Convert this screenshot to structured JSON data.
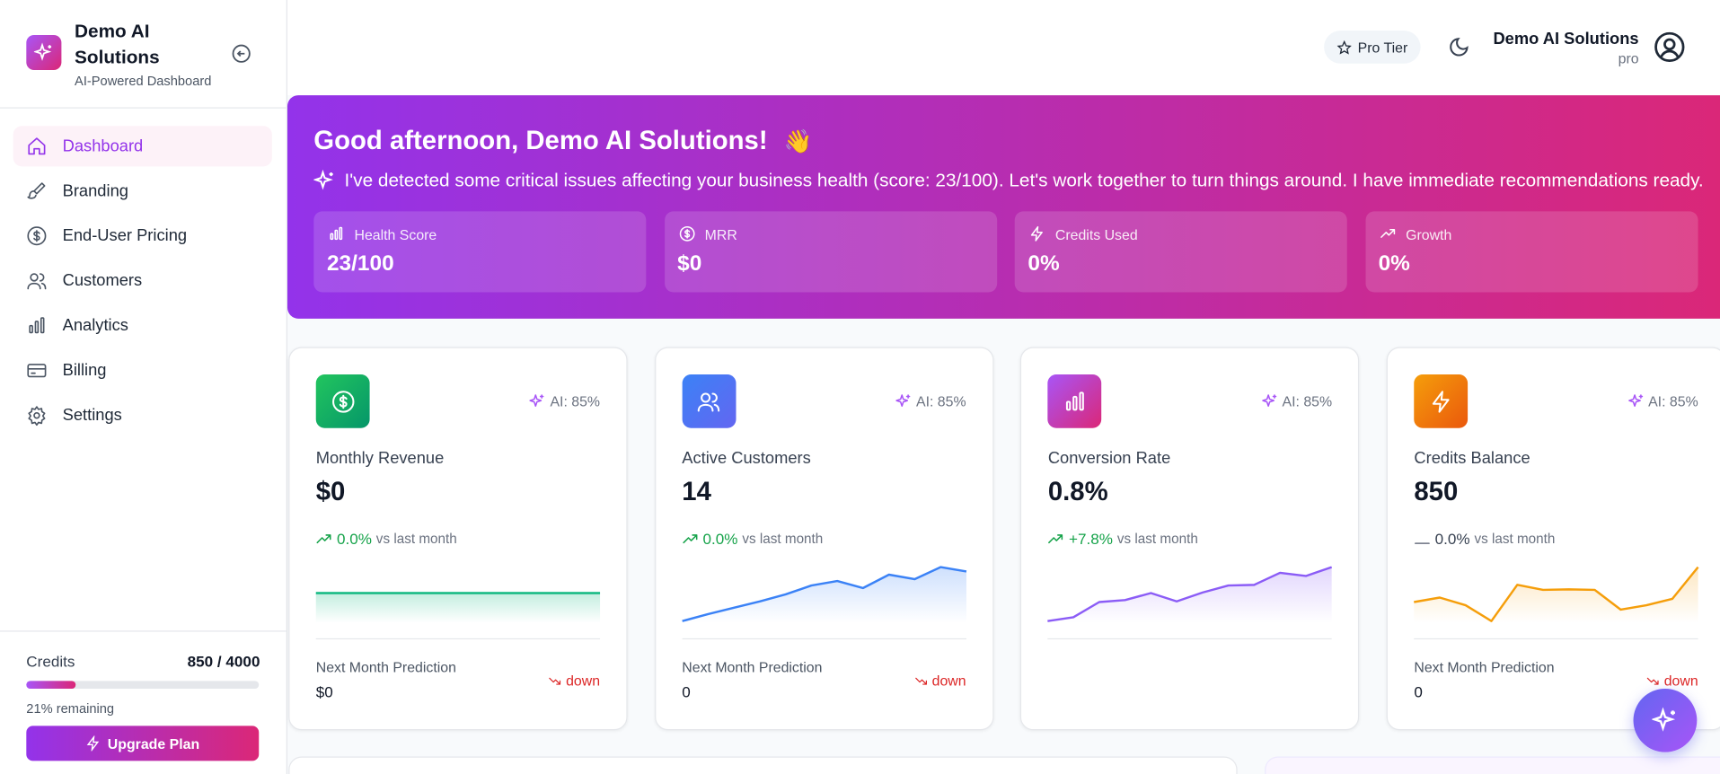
{
  "sidebar": {
    "brand": {
      "name": "Demo AI Solutions",
      "tagline": "AI-Powered Dashboard"
    },
    "nav": [
      "Dashboard",
      "Branding",
      "End-User Pricing",
      "Customers",
      "Analytics",
      "Billing",
      "Settings"
    ],
    "credits": {
      "label": "Credits",
      "amount": "850 / 4000",
      "remaining": {
        "value": 21,
        "label": "21% remaining"
      }
    },
    "upgrade": "Upgrade Plan"
  },
  "header": {
    "plan": "Pro Tier",
    "user": "Demo AI Solutions",
    "role": "pro"
  },
  "banner": {
    "greeting": "Good afternoon, Demo AI Solutions!",
    "emoji": "👋",
    "message": "I've detected some critical issues affecting your business health (score: 23/100). Let's work together to turn things around. I have immediate recommendations ready.",
    "stats": [
      {
        "label": "Health Score",
        "value": "23/100"
      },
      {
        "label": "MRR",
        "value": "$0"
      },
      {
        "label": "Credits Used",
        "value": "0%"
      },
      {
        "label": "Growth",
        "value": "0%"
      }
    ]
  },
  "cards": [
    {
      "ai": "AI: 85%",
      "title": "Monthly Revenue",
      "value": "$0",
      "change": "0.0%",
      "change_note": "vs last month",
      "prediction_label": "Next Month Prediction",
      "prediction": "$0",
      "direction": "down",
      "color": "#10b981",
      "ylim": [
        0,
        100
      ],
      "trend": [
        47,
        47,
        47,
        47,
        47,
        47,
        47,
        47,
        47,
        47,
        47,
        47
      ]
    },
    {
      "ai": "AI: 85%",
      "title": "Active Customers",
      "value": "14",
      "change": "0.0%",
      "change_note": "vs last month",
      "prediction_label": "Next Month Prediction",
      "prediction": "0",
      "direction": "down",
      "color": "#3b82f6",
      "ylim": [
        0,
        100
      ],
      "trend": [
        3,
        14,
        24,
        34,
        45,
        59,
        66,
        55,
        76,
        69,
        88,
        81
      ]
    },
    {
      "ai": "AI: 85%",
      "title": "Conversion Rate",
      "value": "0.8%",
      "change": "+7.8%",
      "change_note": "vs last month",
      "color": "#8b5cf6",
      "ylim": [
        0,
        100
      ],
      "trend": [
        3,
        9,
        33,
        36,
        47,
        34,
        48,
        59,
        60,
        79,
        74,
        88
      ]
    },
    {
      "ai": "AI: 85%",
      "title": "Credits Balance",
      "value": "850",
      "change": "0.0%",
      "change_note": "vs last month",
      "prediction_label": "Next Month Prediction",
      "prediction": "0",
      "direction": "down",
      "color": "#f59e0b",
      "ylim": [
        0,
        100
      ],
      "trend": [
        33,
        40,
        28,
        3,
        60,
        52,
        53,
        52,
        21,
        28,
        38,
        88
      ]
    }
  ]
}
